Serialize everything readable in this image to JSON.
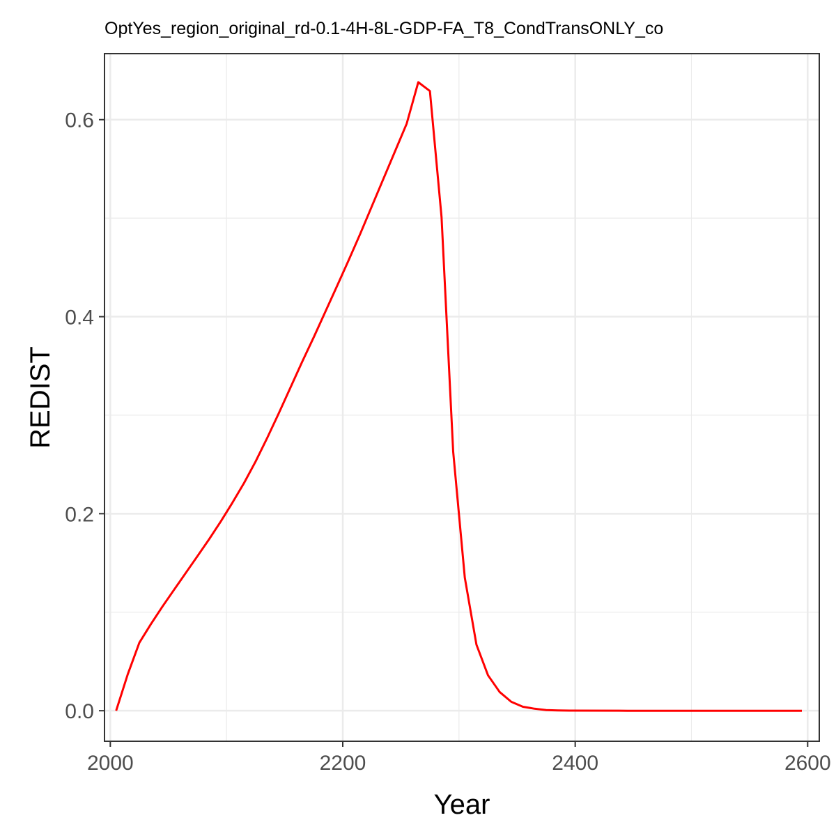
{
  "chart_data": {
    "type": "line",
    "title": "OptYes_region_original_rd-0.1-4H-8L-GDP-FA_T8_CondTransONLY_co",
    "xlabel": "Year",
    "ylabel": "REDIST",
    "xlim": [
      1995,
      2610
    ],
    "ylim": [
      -0.031,
      0.667
    ],
    "x_ticks": [
      2000,
      2200,
      2400,
      2600
    ],
    "x_tick_labels": [
      "2000",
      "2200",
      "2400",
      "2600"
    ],
    "y_ticks": [
      0.0,
      0.2,
      0.4,
      0.6
    ],
    "y_tick_labels": [
      "0.0",
      "0.2",
      "0.4",
      "0.6"
    ],
    "x_minor": [
      2100,
      2300,
      2500
    ],
    "y_minor": [
      0.1,
      0.3,
      0.5
    ],
    "grid": true,
    "legend": "none",
    "series": [
      {
        "color": "#ff0000",
        "x": [
          2005,
          2015,
          2025,
          2035,
          2045,
          2055,
          2065,
          2075,
          2085,
          2095,
          2105,
          2115,
          2125,
          2135,
          2145,
          2155,
          2165,
          2175,
          2185,
          2195,
          2205,
          2215,
          2225,
          2235,
          2245,
          2255,
          2265,
          2275,
          2285,
          2295,
          2305,
          2315,
          2325,
          2335,
          2345,
          2355,
          2365,
          2375,
          2385,
          2395,
          2445,
          2495,
          2545,
          2595
        ],
        "y": [
          0.0,
          0.037,
          0.069,
          0.088,
          0.106,
          0.123,
          0.14,
          0.157,
          0.174,
          0.192,
          0.211,
          0.231,
          0.253,
          0.277,
          0.302,
          0.328,
          0.354,
          0.379,
          0.405,
          0.431,
          0.457,
          0.484,
          0.512,
          0.54,
          0.568,
          0.596,
          0.638,
          0.629,
          0.501,
          0.263,
          0.135,
          0.067,
          0.036,
          0.019,
          0.009,
          0.004,
          0.002,
          0.0006,
          0.0003,
          0.0001,
          0.0,
          0.0,
          0.0,
          0.0
        ]
      }
    ]
  }
}
